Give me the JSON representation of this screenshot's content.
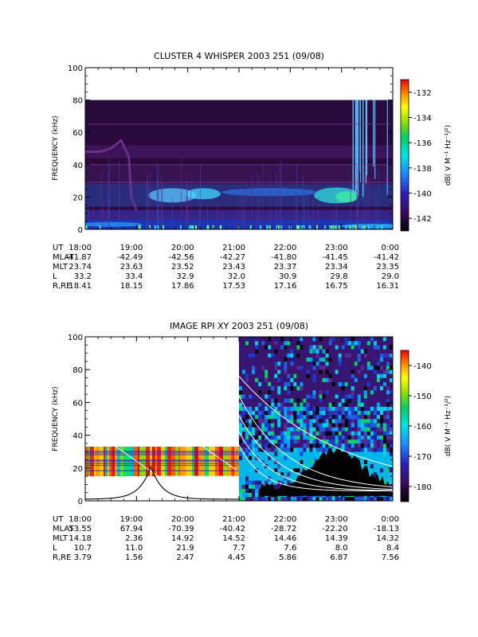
{
  "chart_data": [
    {
      "type": "heatmap",
      "title": "CLUSTER 4 WHISPER 2003 251 (09/08)",
      "ylabel": "FREQUENCY (kHz)",
      "ylim": [
        0,
        100
      ],
      "yticks": [
        "0",
        "20",
        "40",
        "60",
        "80",
        "100"
      ],
      "data_extent_khz": [
        0,
        80
      ],
      "colorbar": {
        "label": "dB( V M⁻¹ Hz⁻¹/²)",
        "range": [
          -143,
          -131
        ],
        "ticks": [
          "-132",
          "-134",
          "-136",
          "-138",
          "-140",
          "-142"
        ]
      },
      "ephemeris": {
        "labels": [
          "UT",
          "MLAT",
          "MLT",
          "L",
          "R,RE"
        ],
        "columns": [
          {
            "UT": "18:00",
            "MLAT": "-41.87",
            "MLT": "23.74",
            "L": "33.2",
            "R,RE": "18.41"
          },
          {
            "UT": "19:00",
            "MLAT": "-42.49",
            "MLT": "23.63",
            "L": "33.4",
            "R,RE": "18.15"
          },
          {
            "UT": "20:00",
            "MLAT": "-42.56",
            "MLT": "23.52",
            "L": "32.9",
            "R,RE": "17.86"
          },
          {
            "UT": "21:00",
            "MLAT": "-42.27",
            "MLT": "23.43",
            "L": "32.0",
            "R,RE": "17.53"
          },
          {
            "UT": "22:00",
            "MLAT": "-41.80",
            "MLT": "23.37",
            "L": "30.9",
            "R,RE": "17.16"
          },
          {
            "UT": "23:00",
            "MLAT": "-41.45",
            "MLT": "23.34",
            "L": "29.8",
            "R,RE": "16.75"
          },
          {
            "UT": "0:00",
            "MLAT": "-41.42",
            "MLT": "23.35",
            "L": "29.0",
            "R,RE": "16.31"
          }
        ]
      }
    },
    {
      "type": "heatmap",
      "title": "IMAGE RPI XY 2003 251 (09/08)",
      "ylabel": "FREQUENCY (kHz)",
      "ylim": [
        0,
        100
      ],
      "yticks": [
        "0",
        "20",
        "40",
        "60",
        "80",
        "100"
      ],
      "low_band_khz": [
        15,
        33
      ],
      "high_segment_start_hour": 21,
      "colorbar": {
        "label": "dB( V M⁻¹ Hz⁻¹/²)",
        "range": [
          -185,
          -135
        ],
        "ticks": [
          "-140",
          "-150",
          "-160",
          "-170",
          "-180"
        ]
      },
      "ephemeris": {
        "labels": [
          "UT",
          "MLAT",
          "MLT",
          "L",
          "R,RE"
        ],
        "columns": [
          {
            "UT": "18:00",
            "MLAT": "53.55",
            "MLT": "14.18",
            "L": "10.7",
            "R,RE": "3.79"
          },
          {
            "UT": "19:00",
            "MLAT": "67.94",
            "MLT": "2.36",
            "L": "11.0",
            "R,RE": "1.56"
          },
          {
            "UT": "20:00",
            "MLAT": "-70.39",
            "MLT": "14.92",
            "L": "21.9",
            "R,RE": "2.47"
          },
          {
            "UT": "21:00",
            "MLAT": "-40.42",
            "MLT": "14.52",
            "L": "7.7",
            "R,RE": "4.45"
          },
          {
            "UT": "22:00",
            "MLAT": "-28.72",
            "MLT": "14.46",
            "L": "7.6",
            "R,RE": "5.86"
          },
          {
            "UT": "23:00",
            "MLAT": "-22.20",
            "MLT": "14.39",
            "L": "8.0",
            "R,RE": "6.87"
          },
          {
            "UT": "0:00",
            "MLAT": "-18.13",
            "MLT": "14.32",
            "L": "8.4",
            "R,RE": "7.56"
          }
        ]
      }
    }
  ]
}
